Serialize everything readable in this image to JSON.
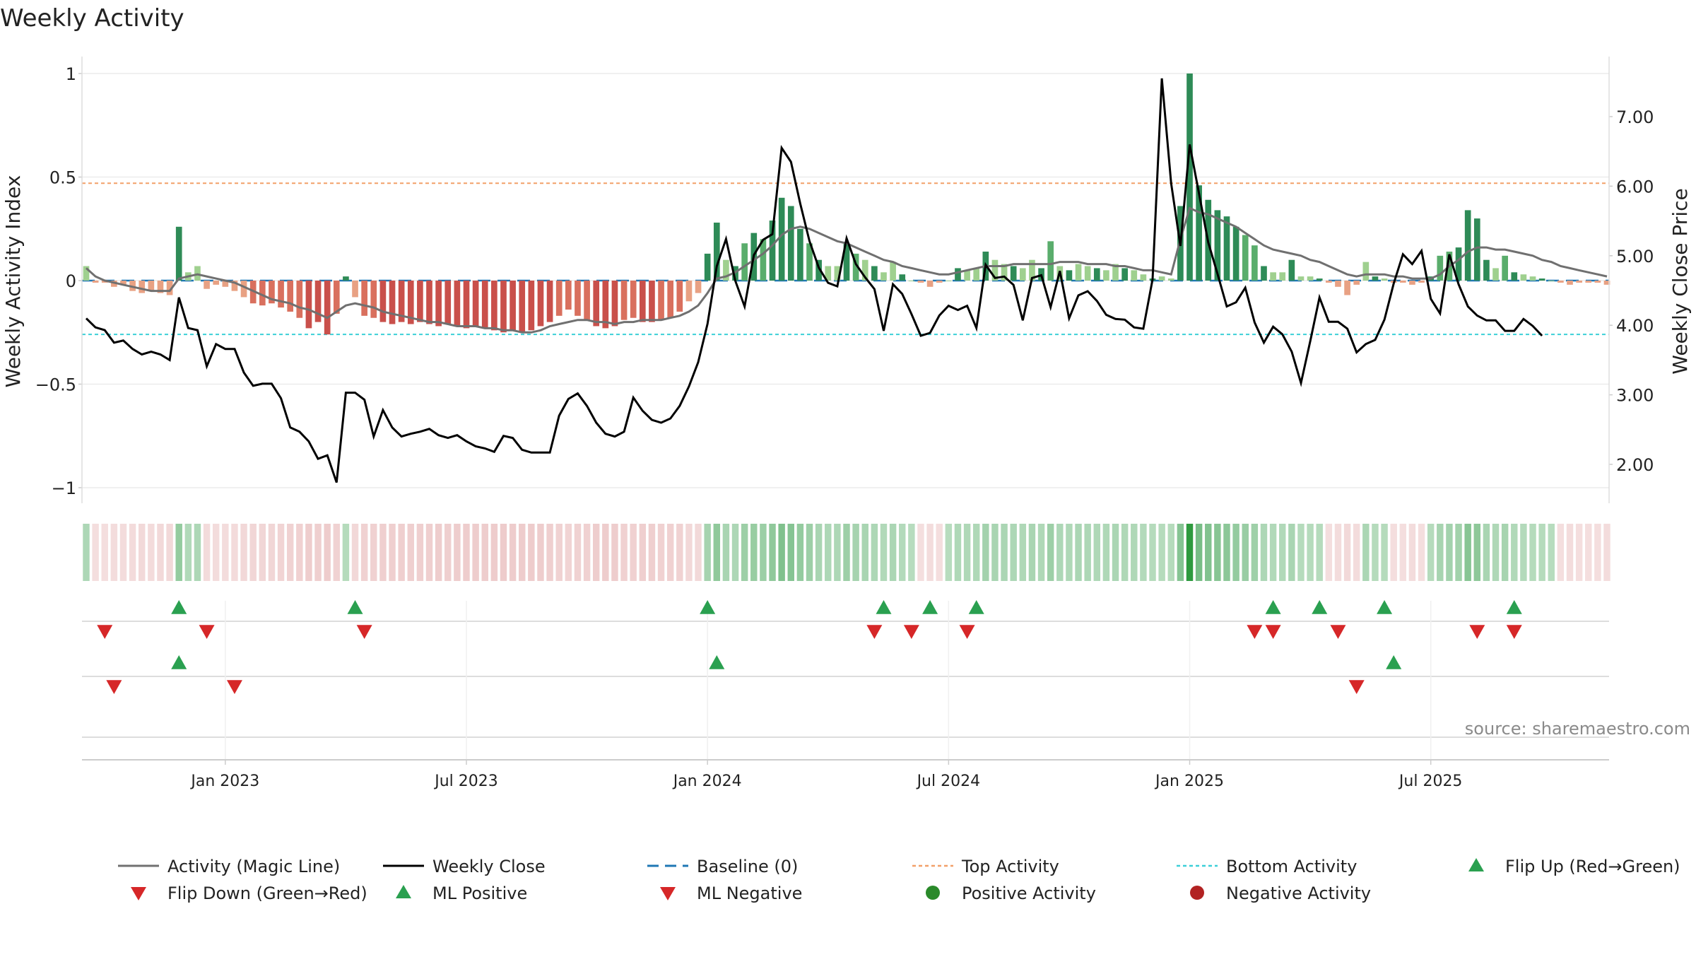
{
  "chart_data": {
    "type": "bar+line",
    "title": "Weekly Activity",
    "ylabel_left": "Weekly Activity Index",
    "ylabel_right": "Weekly Close Price",
    "source": "source: sharemaestro.com",
    "ylim_left": [
      -1.1,
      1.05
    ],
    "ylim_right": [
      1.45,
      7.95
    ],
    "left_ticks": [
      1,
      0.5,
      0,
      -0.5,
      -1
    ],
    "left_tick_labels": [
      "1",
      "0.5",
      "0",
      "−0.5",
      "−1"
    ],
    "right_ticks": [
      7,
      6,
      5,
      4,
      3,
      2
    ],
    "right_tick_labels": [
      "7.00",
      "6.00",
      "5.00",
      "4.00",
      "3.00",
      "2.00"
    ],
    "x_tick_labels": [
      "Jan 2023",
      "Jul 2023",
      "Jan 2024",
      "Jul 2024",
      "Jan 2025",
      "Jul 2025"
    ],
    "x_tick_weeks": [
      15,
      41,
      67,
      93,
      119,
      145
    ],
    "top_activity_level": 0.47,
    "bottom_activity_level": -0.26,
    "colors": {
      "pos_strong": "#2e8b57",
      "pos_mid": "#5aad6c",
      "pos_light": "#9fd08f",
      "neg_strong": "#c9504b",
      "neg_mid": "#d9705e",
      "neg_light": "#e8a183",
      "magic_line": "#707070",
      "close_line": "#000000",
      "baseline": "#1f77b4",
      "top_activity": "#f2a069",
      "bottom_activity": "#3ccfd8",
      "flip_up": "#2aa050",
      "flip_down": "#d62728"
    },
    "activity": [
      0.07,
      -0.01,
      -0.01,
      -0.03,
      -0.02,
      -0.05,
      -0.06,
      -0.05,
      -0.06,
      -0.07,
      0.26,
      0.04,
      0.07,
      -0.04,
      -0.02,
      -0.03,
      -0.05,
      -0.08,
      -0.11,
      -0.12,
      -0.11,
      -0.13,
      -0.15,
      -0.18,
      -0.23,
      -0.2,
      -0.26,
      -0.16,
      0.02,
      -0.08,
      -0.17,
      -0.18,
      -0.2,
      -0.21,
      -0.2,
      -0.21,
      -0.2,
      -0.21,
      -0.22,
      -0.21,
      -0.22,
      -0.23,
      -0.22,
      -0.23,
      -0.24,
      -0.25,
      -0.24,
      -0.25,
      -0.24,
      -0.22,
      -0.2,
      -0.17,
      -0.14,
      -0.17,
      -0.19,
      -0.22,
      -0.23,
      -0.22,
      -0.19,
      -0.18,
      -0.2,
      -0.2,
      -0.19,
      -0.18,
      -0.15,
      -0.1,
      -0.06,
      0.13,
      0.28,
      0.1,
      0.07,
      0.18,
      0.23,
      0.2,
      0.29,
      0.4,
      0.36,
      0.25,
      0.18,
      0.1,
      0.07,
      0.07,
      0.18,
      0.13,
      0.1,
      0.07,
      0.04,
      0.09,
      0.03,
      0.0,
      -0.01,
      -0.03,
      -0.01,
      0.0,
      0.06,
      0.05,
      0.06,
      0.14,
      0.1,
      0.08,
      0.07,
      0.06,
      0.1,
      0.06,
      0.19,
      0.07,
      0.05,
      0.08,
      0.07,
      0.06,
      0.05,
      0.08,
      0.06,
      0.05,
      0.03,
      0.01,
      0.02,
      0.01,
      0.36,
      1.0,
      0.46,
      0.39,
      0.34,
      0.31,
      0.26,
      0.22,
      0.17,
      0.07,
      0.04,
      0.04,
      0.1,
      0.02,
      0.02,
      0.01,
      -0.01,
      -0.03,
      -0.07,
      -0.02,
      0.09,
      0.02,
      0.01,
      -0.01,
      -0.01,
      -0.02,
      -0.01,
      0.02,
      0.12,
      0.14,
      0.16,
      0.34,
      0.3,
      0.1,
      0.06,
      0.12,
      0.04,
      0.03,
      0.02,
      0.01,
      0.0,
      -0.01,
      -0.02,
      -0.01,
      -0.01,
      -0.01,
      -0.02
    ],
    "magic_line": [
      0.06,
      0.02,
      0.0,
      -0.01,
      -0.02,
      -0.03,
      -0.04,
      -0.05,
      -0.05,
      -0.05,
      0.01,
      0.02,
      0.03,
      0.02,
      0.01,
      0.0,
      -0.01,
      -0.03,
      -0.05,
      -0.07,
      -0.09,
      -0.1,
      -0.11,
      -0.13,
      -0.14,
      -0.16,
      -0.18,
      -0.15,
      -0.12,
      -0.11,
      -0.12,
      -0.13,
      -0.15,
      -0.16,
      -0.17,
      -0.18,
      -0.19,
      -0.2,
      -0.2,
      -0.21,
      -0.22,
      -0.22,
      -0.22,
      -0.23,
      -0.23,
      -0.24,
      -0.24,
      -0.25,
      -0.25,
      -0.24,
      -0.22,
      -0.21,
      -0.2,
      -0.19,
      -0.19,
      -0.2,
      -0.2,
      -0.21,
      -0.2,
      -0.2,
      -0.19,
      -0.19,
      -0.19,
      -0.18,
      -0.17,
      -0.15,
      -0.12,
      -0.06,
      0.01,
      0.02,
      0.04,
      0.07,
      0.1,
      0.13,
      0.17,
      0.22,
      0.25,
      0.26,
      0.25,
      0.23,
      0.21,
      0.19,
      0.18,
      0.16,
      0.14,
      0.12,
      0.1,
      0.09,
      0.07,
      0.06,
      0.05,
      0.04,
      0.03,
      0.03,
      0.04,
      0.05,
      0.06,
      0.07,
      0.07,
      0.07,
      0.08,
      0.08,
      0.08,
      0.08,
      0.08,
      0.09,
      0.09,
      0.09,
      0.08,
      0.08,
      0.08,
      0.07,
      0.07,
      0.06,
      0.05,
      0.05,
      0.04,
      0.03,
      0.2,
      0.35,
      0.33,
      0.32,
      0.3,
      0.28,
      0.26,
      0.23,
      0.2,
      0.17,
      0.15,
      0.14,
      0.13,
      0.12,
      0.1,
      0.09,
      0.07,
      0.05,
      0.03,
      0.02,
      0.03,
      0.03,
      0.03,
      0.02,
      0.02,
      0.01,
      0.01,
      0.01,
      0.03,
      0.07,
      0.1,
      0.14,
      0.16,
      0.16,
      0.15,
      0.15,
      0.14,
      0.13,
      0.12,
      0.1,
      0.09,
      0.07,
      0.06,
      0.05,
      0.04,
      0.03,
      0.02
    ],
    "weekly_close": [
      4.1,
      3.97,
      3.93,
      3.75,
      3.78,
      3.66,
      3.58,
      3.62,
      3.58,
      3.5,
      4.4,
      3.96,
      3.93,
      3.41,
      3.73,
      3.66,
      3.66,
      3.32,
      3.13,
      3.16,
      3.16,
      2.95,
      2.53,
      2.47,
      2.33,
      2.08,
      2.13,
      1.74,
      3.03,
      3.03,
      2.93,
      2.4,
      2.78,
      2.53,
      2.4,
      2.44,
      2.47,
      2.51,
      2.42,
      2.38,
      2.42,
      2.33,
      2.26,
      2.23,
      2.18,
      2.41,
      2.38,
      2.21,
      2.17,
      2.17,
      2.17,
      2.7,
      2.94,
      3.02,
      2.84,
      2.6,
      2.44,
      2.4,
      2.47,
      2.96,
      2.77,
      2.64,
      2.6,
      2.66,
      2.84,
      3.12,
      3.47,
      4.02,
      4.85,
      5.24,
      4.64,
      4.27,
      5.01,
      5.23,
      5.31,
      6.55,
      6.35,
      5.75,
      5.21,
      4.83,
      4.61,
      4.56,
      5.25,
      4.88,
      4.69,
      4.52,
      3.92,
      4.59,
      4.45,
      4.16,
      3.85,
      3.89,
      4.14,
      4.28,
      4.22,
      4.28,
      3.96,
      4.87,
      4.68,
      4.7,
      4.58,
      4.07,
      4.68,
      4.72,
      4.26,
      4.78,
      4.1,
      4.43,
      4.49,
      4.35,
      4.15,
      4.09,
      4.08,
      3.97,
      3.95,
      4.66,
      7.55,
      6.04,
      5.14,
      6.6,
      5.9,
      5.19,
      4.74,
      4.27,
      4.33,
      4.54,
      4.04,
      3.75,
      3.98,
      3.87,
      3.62,
      3.17,
      3.77,
      4.4,
      4.05,
      4.05,
      3.95,
      3.61,
      3.73,
      3.79,
      4.08,
      4.6,
      5.02,
      4.88,
      5.07,
      4.38,
      4.17,
      5.02,
      4.59,
      4.27,
      4.14,
      4.07,
      4.07,
      3.92,
      3.92,
      4.09,
      3.99,
      3.85
    ],
    "heat_strip": [
      0.07,
      -0.01,
      -0.01,
      -0.03,
      -0.02,
      -0.05,
      -0.06,
      -0.05,
      -0.06,
      -0.07,
      0.26,
      0.04,
      0.07,
      -0.04,
      -0.02,
      -0.03,
      -0.05,
      -0.08,
      -0.11,
      -0.12,
      -0.11,
      -0.13,
      -0.15,
      -0.18,
      -0.23,
      -0.2,
      -0.26,
      -0.16,
      0.02,
      -0.08,
      -0.17,
      -0.18,
      -0.2,
      -0.21,
      -0.2,
      -0.21,
      -0.2,
      -0.21,
      -0.22,
      -0.21,
      -0.22,
      -0.23,
      -0.22,
      -0.23,
      -0.24,
      -0.25,
      -0.24,
      -0.25,
      -0.24,
      -0.22,
      -0.2,
      -0.17,
      -0.14,
      -0.17,
      -0.19,
      -0.22,
      -0.23,
      -0.22,
      -0.19,
      -0.18,
      -0.2,
      -0.2,
      -0.19,
      -0.18,
      -0.15,
      -0.1,
      -0.06,
      0.13,
      0.28,
      0.1,
      0.07,
      0.18,
      0.23,
      0.2,
      0.29,
      0.4,
      0.36,
      0.25,
      0.18,
      0.1,
      0.07,
      0.07,
      0.18,
      0.13,
      0.1,
      0.07,
      0.04,
      0.09,
      0.03,
      0.0,
      -0.01,
      -0.03,
      -0.01,
      0.0,
      0.06,
      0.05,
      0.06,
      0.14,
      0.1,
      0.08,
      0.07,
      0.06,
      0.1,
      0.06,
      0.19,
      0.07,
      0.05,
      0.08,
      0.07,
      0.06,
      0.05,
      0.08,
      0.06,
      0.05,
      0.03,
      0.01,
      0.02,
      0.01,
      0.36,
      1.0,
      0.46,
      0.39,
      0.34,
      0.31,
      0.26,
      0.22,
      0.17,
      0.07,
      0.04,
      0.04,
      0.1,
      0.02,
      0.02,
      0.01,
      -0.01,
      -0.03,
      -0.07,
      -0.02,
      0.09,
      0.02,
      0.01,
      -0.01,
      -0.01,
      -0.02,
      -0.01,
      0.02,
      0.12,
      0.14,
      0.16,
      0.34,
      0.3,
      0.1,
      0.06,
      0.12,
      0.04,
      0.03,
      0.02,
      0.01,
      0.0,
      -0.01,
      -0.02,
      -0.01,
      -0.01,
      -0.01,
      -0.02
    ],
    "flip_up_weeks": [
      10,
      29,
      67,
      86,
      91,
      96,
      128,
      133,
      140,
      154
    ],
    "flip_down_weeks": [
      2,
      13,
      30,
      85,
      89,
      95,
      126,
      128,
      135,
      150,
      154
    ],
    "ml_positive_weeks": [
      10,
      68,
      141
    ],
    "ml_negative_weeks": [
      3,
      16,
      137
    ],
    "legend": [
      {
        "label": "Activity (Magic Line)",
        "type": "line",
        "color": "#707070"
      },
      {
        "label": "Weekly Close",
        "type": "line",
        "color": "#000000"
      },
      {
        "label": "Baseline (0)",
        "type": "dashed",
        "color": "#1f77b4"
      },
      {
        "label": "Top Activity",
        "type": "dotted",
        "color": "#f2a069"
      },
      {
        "label": "Bottom Activity",
        "type": "dotted",
        "color": "#3ccfd8"
      },
      {
        "label": "Flip Up (Red→Green)",
        "type": "tri-up",
        "color": "#2aa050"
      },
      {
        "label": "Flip Down (Green→Red)",
        "type": "tri-down",
        "color": "#d62728"
      },
      {
        "label": "ML Positive",
        "type": "tri-up",
        "color": "#2aa050"
      },
      {
        "label": "ML Negative",
        "type": "tri-down",
        "color": "#d62728"
      },
      {
        "label": "Positive Activity",
        "type": "dot",
        "color": "#2a8a2a"
      },
      {
        "label": "Negative Activity",
        "type": "dot",
        "color": "#b22222"
      }
    ]
  }
}
